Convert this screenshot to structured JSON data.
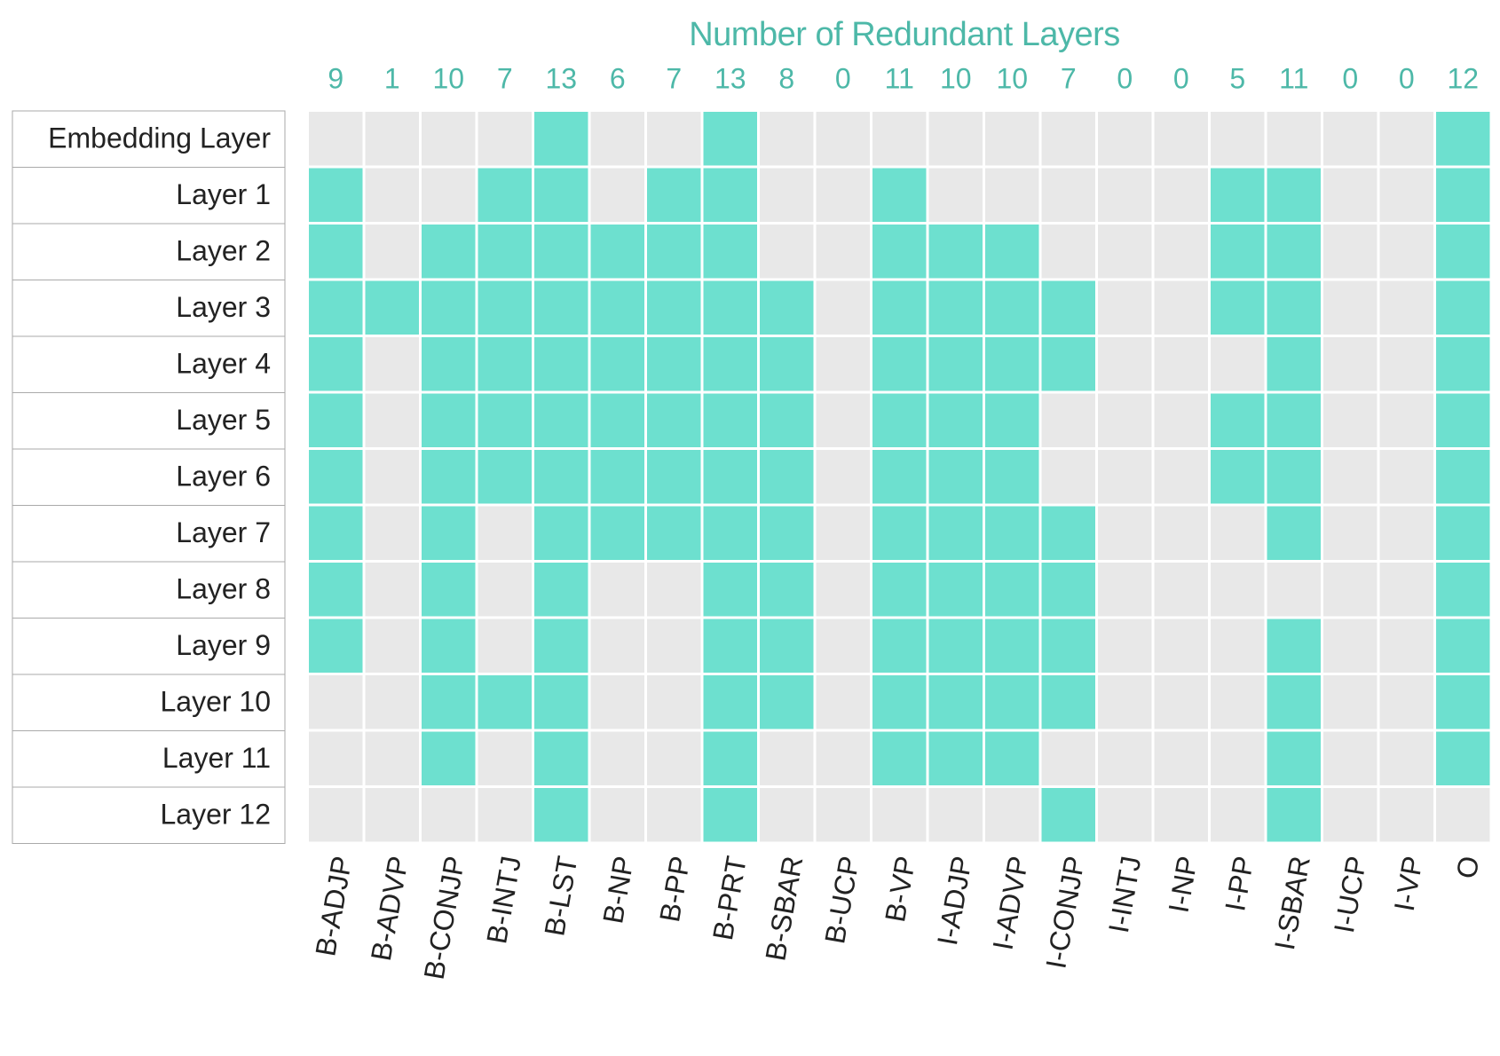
{
  "chart_data": {
    "type": "heatmap",
    "title": "Number of Redundant Layers",
    "rows": [
      "Embedding Layer",
      "Layer 1",
      "Layer 2",
      "Layer 3",
      "Layer 4",
      "Layer 5",
      "Layer 6",
      "Layer 7",
      "Layer 8",
      "Layer 9",
      "Layer 10",
      "Layer 11",
      "Layer 12"
    ],
    "columns": [
      "B-ADJP",
      "B-ADVP",
      "B-CONJP",
      "B-INTJ",
      "B-LST",
      "B-NP",
      "B-PP",
      "B-PRT",
      "B-SBAR",
      "B-UCP",
      "B-VP",
      "I-ADJP",
      "I-ADVP",
      "I-CONJP",
      "I-INTJ",
      "I-NP",
      "I-PP",
      "I-SBAR",
      "I-UCP",
      "I-VP",
      "O"
    ],
    "column_counts": [
      "9",
      "1",
      "10",
      "7",
      "13",
      "6",
      "7",
      "13",
      "8",
      "0",
      "11",
      "10",
      "10",
      "7",
      "0",
      "0",
      "5",
      "11",
      "0",
      "0",
      "12"
    ],
    "redundant": [
      [
        0,
        0,
        0,
        0,
        1,
        0,
        0,
        1,
        0,
        0,
        0,
        0,
        0,
        0,
        0,
        0,
        0,
        0,
        0,
        0,
        1
      ],
      [
        1,
        0,
        0,
        1,
        1,
        0,
        1,
        1,
        0,
        0,
        1,
        0,
        0,
        0,
        0,
        0,
        1,
        1,
        0,
        0,
        1
      ],
      [
        1,
        0,
        1,
        1,
        1,
        1,
        1,
        1,
        0,
        0,
        1,
        1,
        1,
        0,
        0,
        0,
        1,
        1,
        0,
        0,
        1
      ],
      [
        1,
        1,
        1,
        1,
        1,
        1,
        1,
        1,
        1,
        0,
        1,
        1,
        1,
        1,
        0,
        0,
        1,
        1,
        0,
        0,
        1
      ],
      [
        1,
        0,
        1,
        1,
        1,
        1,
        1,
        1,
        1,
        0,
        1,
        1,
        1,
        1,
        0,
        0,
        0,
        1,
        0,
        0,
        1
      ],
      [
        1,
        0,
        1,
        1,
        1,
        1,
        1,
        1,
        1,
        0,
        1,
        1,
        1,
        0,
        0,
        0,
        1,
        1,
        0,
        0,
        1
      ],
      [
        1,
        0,
        1,
        1,
        1,
        1,
        1,
        1,
        1,
        0,
        1,
        1,
        1,
        0,
        0,
        0,
        1,
        1,
        0,
        0,
        1
      ],
      [
        1,
        0,
        1,
        0,
        1,
        1,
        1,
        1,
        1,
        0,
        1,
        1,
        1,
        1,
        0,
        0,
        0,
        1,
        0,
        0,
        1
      ],
      [
        1,
        0,
        1,
        0,
        1,
        0,
        0,
        1,
        1,
        0,
        1,
        1,
        1,
        1,
        0,
        0,
        0,
        0,
        0,
        0,
        1
      ],
      [
        1,
        0,
        1,
        0,
        1,
        0,
        0,
        1,
        1,
        0,
        1,
        1,
        1,
        1,
        0,
        0,
        0,
        1,
        0,
        0,
        1
      ],
      [
        0,
        0,
        1,
        1,
        1,
        0,
        0,
        1,
        1,
        0,
        1,
        1,
        1,
        1,
        0,
        0,
        0,
        1,
        0,
        0,
        1
      ],
      [
        0,
        0,
        1,
        0,
        1,
        0,
        0,
        1,
        0,
        0,
        1,
        1,
        1,
        0,
        0,
        0,
        0,
        1,
        0,
        0,
        1
      ],
      [
        0,
        0,
        0,
        0,
        1,
        0,
        0,
        1,
        0,
        0,
        0,
        0,
        0,
        1,
        0,
        0,
        0,
        1,
        0,
        0,
        0
      ]
    ],
    "colors": {
      "redundant": "#6de0cf",
      "not_redundant": "#e8e8e8",
      "count_text": "#4db8a8",
      "title_text": "#4db8a8",
      "row_border": "#aaaaaa",
      "label_text": "#222222"
    },
    "grid": false,
    "legend": "none"
  }
}
